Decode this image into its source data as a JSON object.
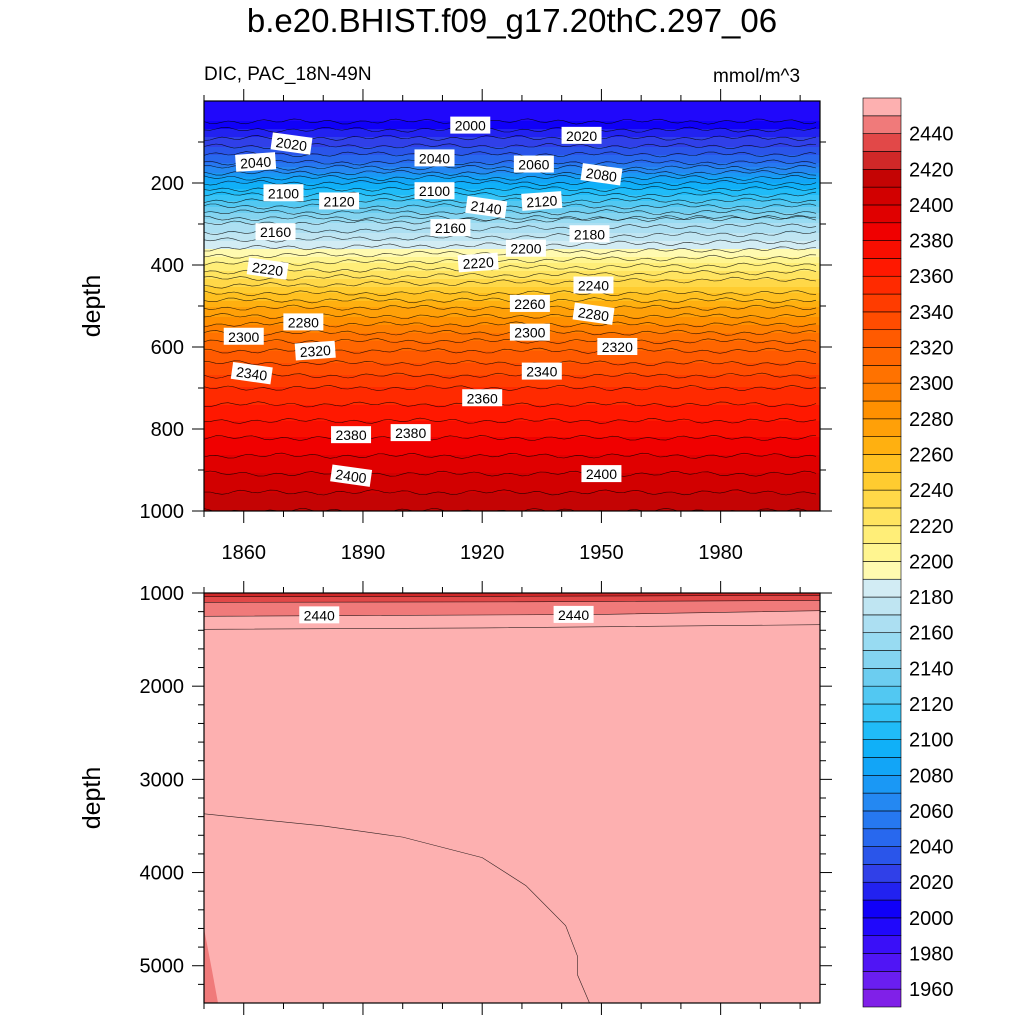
{
  "title": "b.e20.BHIST.f09_g17.20thC.297_06",
  "subtitle_left": "DIC, PAC_18N-49N",
  "subtitle_right": "mmol/m^3",
  "chart_data": [
    {
      "type": "heatmap",
      "panel": "upper",
      "ylabel": "depth",
      "xlim": [
        1850,
        2005
      ],
      "ylim": [
        1000,
        0
      ],
      "xticks": [
        1860,
        1890,
        1920,
        1950,
        1980
      ],
      "yticks": [
        200,
        400,
        600,
        800,
        1000
      ],
      "x_tick_labels": [
        "1860",
        "1890",
        "1920",
        "1950",
        "1980"
      ],
      "y_tick_labels": [
        "200",
        "400",
        "600",
        "800",
        "1000"
      ],
      "grid": false,
      "isoline_depth_profile": [
        {
          "depth": 0,
          "value": 1990
        },
        {
          "depth": 50,
          "value": 2000
        },
        {
          "depth": 150,
          "value": 2050
        },
        {
          "depth": 200,
          "value": 2090
        },
        {
          "depth": 300,
          "value": 2160
        },
        {
          "depth": 360,
          "value": 2190
        },
        {
          "depth": 420,
          "value": 2222
        },
        {
          "depth": 500,
          "value": 2268
        },
        {
          "depth": 600,
          "value": 2317
        },
        {
          "depth": 700,
          "value": 2350
        },
        {
          "depth": 800,
          "value": 2375
        },
        {
          "depth": 900,
          "value": 2398
        },
        {
          "depth": 1000,
          "value": 2420
        }
      ],
      "contour_labels": [
        {
          "text": "2000",
          "year": 1917,
          "depth": 60
        },
        {
          "text": "2020",
          "year": 1872,
          "depth": 105
        },
        {
          "text": "2020",
          "year": 1945,
          "depth": 85
        },
        {
          "text": "2040",
          "year": 1863,
          "depth": 150
        },
        {
          "text": "2040",
          "year": 1908,
          "depth": 140
        },
        {
          "text": "2060",
          "year": 1933,
          "depth": 155
        },
        {
          "text": "2080",
          "year": 1950,
          "depth": 180
        },
        {
          "text": "2100",
          "year": 1870,
          "depth": 225
        },
        {
          "text": "2100",
          "year": 1908,
          "depth": 220
        },
        {
          "text": "2120",
          "year": 1884,
          "depth": 245
        },
        {
          "text": "2120",
          "year": 1935,
          "depth": 245
        },
        {
          "text": "2140",
          "year": 1921,
          "depth": 260
        },
        {
          "text": "2160",
          "year": 1868,
          "depth": 320
        },
        {
          "text": "2160",
          "year": 1912,
          "depth": 310
        },
        {
          "text": "2180",
          "year": 1947,
          "depth": 325
        },
        {
          "text": "2200",
          "year": 1931,
          "depth": 360
        },
        {
          "text": "2220",
          "year": 1866,
          "depth": 410
        },
        {
          "text": "2220",
          "year": 1919,
          "depth": 395
        },
        {
          "text": "2240",
          "year": 1948,
          "depth": 450
        },
        {
          "text": "2260",
          "year": 1932,
          "depth": 495
        },
        {
          "text": "2280",
          "year": 1875,
          "depth": 540
        },
        {
          "text": "2280",
          "year": 1948,
          "depth": 520
        },
        {
          "text": "2300",
          "year": 1860,
          "depth": 575
        },
        {
          "text": "2300",
          "year": 1932,
          "depth": 565
        },
        {
          "text": "2320",
          "year": 1878,
          "depth": 610
        },
        {
          "text": "2320",
          "year": 1954,
          "depth": 600
        },
        {
          "text": "2340",
          "year": 1862,
          "depth": 665
        },
        {
          "text": "2340",
          "year": 1935,
          "depth": 660
        },
        {
          "text": "2360",
          "year": 1920,
          "depth": 725
        },
        {
          "text": "2380",
          "year": 1887,
          "depth": 815
        },
        {
          "text": "2380",
          "year": 1902,
          "depth": 810
        },
        {
          "text": "2400",
          "year": 1887,
          "depth": 915
        },
        {
          "text": "2400",
          "year": 1950,
          "depth": 910
        }
      ]
    },
    {
      "type": "heatmap",
      "panel": "lower",
      "ylabel": "depth",
      "xlim": [
        1850,
        2005
      ],
      "ylim": [
        5400,
        1000
      ],
      "yticks": [
        1000,
        2000,
        3000,
        4000,
        5000
      ],
      "y_tick_labels": [
        "1000",
        "2000",
        "3000",
        "4000",
        "5000"
      ],
      "grid": false,
      "contour_lines": [
        {
          "value": 2430,
          "points": [
            [
              1850,
              1040
            ],
            [
              1930,
              1035
            ],
            [
              2005,
              1025
            ]
          ]
        },
        {
          "value": 2440,
          "points": [
            [
              1850,
              1100
            ],
            [
              1930,
              1095
            ],
            [
              2005,
              1080
            ]
          ]
        },
        {
          "value": 2450,
          "points": [
            [
              1850,
              1250
            ],
            [
              1950,
              1230
            ],
            [
              2005,
              1190
            ]
          ]
        },
        {
          "value": 2460,
          "points": [
            [
              1850,
              1390
            ],
            [
              1920,
              1375
            ],
            [
              2005,
              1340
            ]
          ]
        },
        {
          "value": 2450,
          "points": [
            [
              1850,
              3370
            ],
            [
              1880,
              3500
            ],
            [
              1900,
              3620
            ],
            [
              1920,
              3840
            ],
            [
              1931,
              4140
            ],
            [
              1941,
              4570
            ],
            [
              1944,
              4900
            ],
            [
              1944,
              5100
            ],
            [
              1947,
              5400
            ]
          ]
        }
      ],
      "regions": [
        {
          "value": 2460,
          "description": "band near 1000"
        },
        {
          "value": 2450,
          "description": "lower-left deep water"
        },
        {
          "value": 2455,
          "description": "bulk 1400-5400"
        }
      ],
      "contour_labels": [
        {
          "text": "2440",
          "year": 1879,
          "depth": 1240
        },
        {
          "text": "2440",
          "year": 1943,
          "depth": 1235
        }
      ]
    }
  ],
  "colorbar": {
    "labels": [
      "2440",
      "2420",
      "2400",
      "2380",
      "2360",
      "2340",
      "2320",
      "2300",
      "2280",
      "2260",
      "2240",
      "2220",
      "2200",
      "2180",
      "2160",
      "2140",
      "2120",
      "2100",
      "2080",
      "2060",
      "2040",
      "2020",
      "2000",
      "1980",
      "1960"
    ],
    "levels": [
      1950,
      1960,
      1970,
      1980,
      1990,
      2000,
      2010,
      2020,
      2030,
      2040,
      2050,
      2060,
      2070,
      2080,
      2090,
      2100,
      2110,
      2120,
      2130,
      2140,
      2150,
      2160,
      2170,
      2180,
      2190,
      2200,
      2210,
      2220,
      2230,
      2240,
      2250,
      2260,
      2270,
      2280,
      2290,
      2300,
      2310,
      2320,
      2330,
      2340,
      2350,
      2360,
      2370,
      2380,
      2390,
      2400,
      2410,
      2420,
      2430,
      2440,
      2450,
      2460
    ],
    "colors": [
      "#8020e8",
      "#6a1ef0",
      "#5015f5",
      "#3a0ff8",
      "#2008fb",
      "#1000f8",
      "#2222f0",
      "#3040e8",
      "#2a55ea",
      "#2868ee",
      "#2678f0",
      "#2488f2",
      "#1a98f5",
      "#12a5f7",
      "#10b0f8",
      "#20bcf8",
      "#38c4f6",
      "#52c8f2",
      "#6ccdf0",
      "#84d4f0",
      "#98dbf2",
      "#acdff2",
      "#bfe5f2",
      "#d2ecf4",
      "#fffab0",
      "#fff590",
      "#ffee78",
      "#ffe460",
      "#ffd848",
      "#ffcc30",
      "#ffc020",
      "#ffb010",
      "#ffa008",
      "#ff9000",
      "#ff8000",
      "#ff7200",
      "#ff6600",
      "#ff5a00",
      "#ff4c00",
      "#ff3c00",
      "#ff2a00",
      "#ff1800",
      "#f80e00",
      "#f00000",
      "#e00000",
      "#d20000",
      "#c40404",
      "#d02828",
      "#e24848",
      "#f07a7a",
      "#fdb0b0"
    ]
  }
}
